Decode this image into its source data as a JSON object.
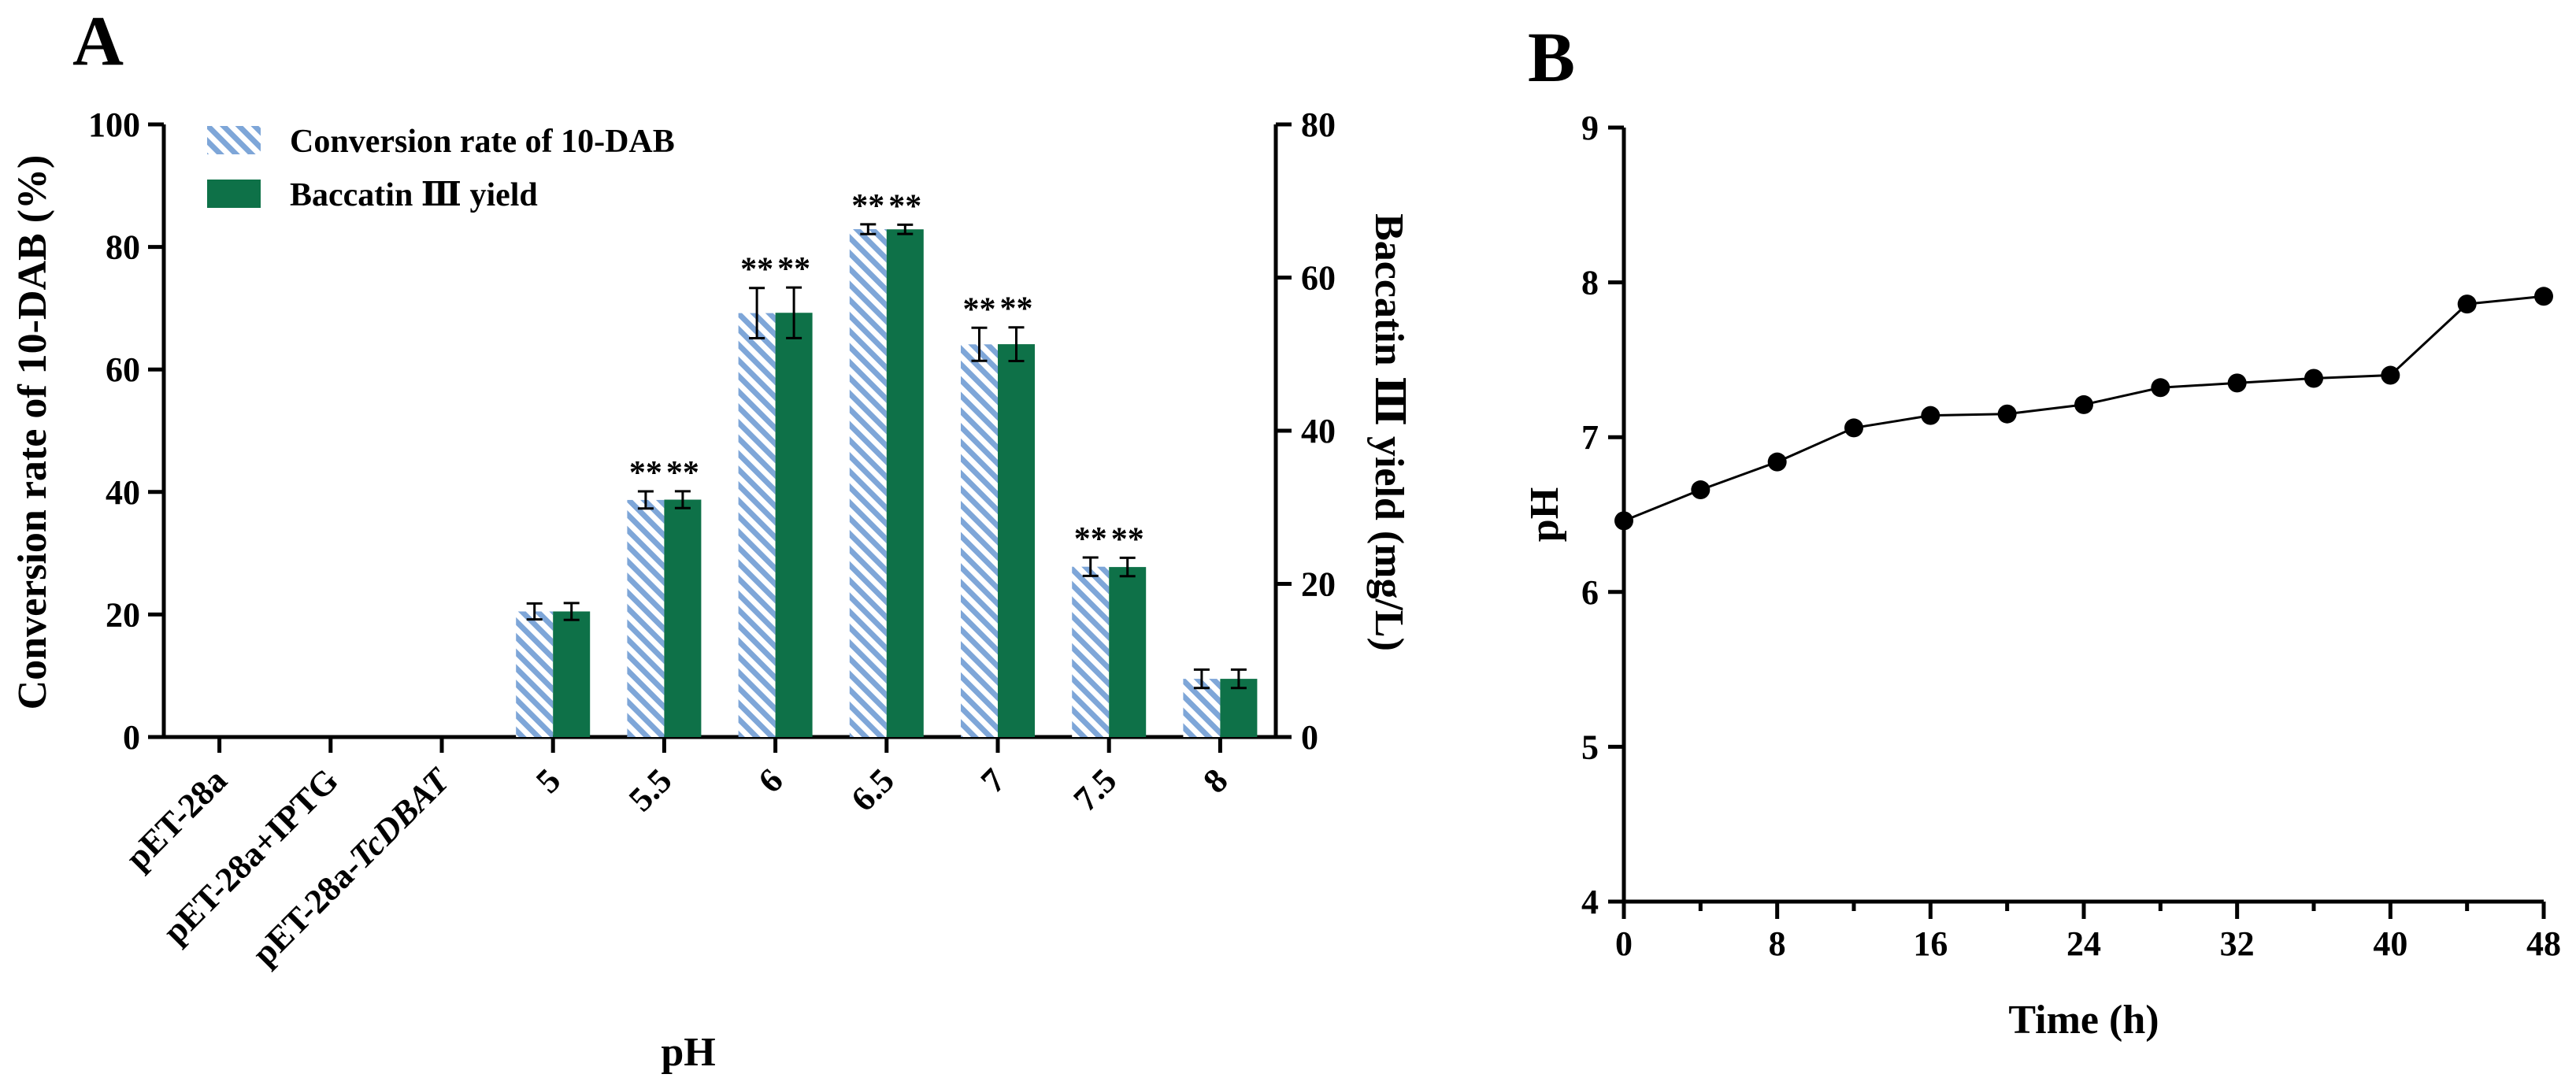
{
  "chart_data": [
    {
      "panel": "A",
      "type": "bar",
      "xlabel": "pH",
      "ylabel": "Conversion rate of 10-DAB (%)",
      "y2label": "Baccatin Ⅲ yield (mg/L)",
      "ylim": [
        0,
        100
      ],
      "y2lim": [
        0,
        80
      ],
      "yticks": [
        "0",
        "20",
        "40",
        "60",
        "80",
        "100"
      ],
      "y2ticks": [
        "0",
        "20",
        "40",
        "60",
        "80"
      ],
      "categories": [
        "pET-28a",
        "pET-28a+IPTG",
        "pET-28a-TcDBAT",
        "5",
        "5.5",
        "6",
        "6.5",
        "7",
        "7.5",
        "8"
      ],
      "legend_position": "top-left",
      "series": [
        {
          "name": "Conversion rate of 10-DAB",
          "axis": "left",
          "color": "#7ea6d8",
          "pattern": "diagonal-hatch",
          "values": [
            0,
            0,
            0,
            20.5,
            38.7,
            69.2,
            82.9,
            64.1,
            27.8,
            9.5
          ],
          "errors": [
            0,
            0,
            0,
            1.3,
            1.4,
            4.1,
            0.8,
            2.7,
            1.5,
            1.5
          ],
          "significance": [
            "",
            "",
            "",
            "",
            "**",
            "**",
            "**",
            "**",
            "**",
            ""
          ]
        },
        {
          "name": "Baccatin Ⅲ yield",
          "axis": "right",
          "color": "#0e7148",
          "pattern": "solid",
          "values": [
            0,
            0,
            0,
            16.4,
            31.0,
            55.4,
            66.3,
            51.3,
            22.2,
            7.6
          ],
          "errors": [
            0,
            0,
            0,
            1.1,
            1.1,
            3.3,
            0.6,
            2.2,
            1.2,
            1.2
          ],
          "significance": [
            "",
            "",
            "",
            "",
            "**",
            "**",
            "**",
            "**",
            "**",
            ""
          ]
        }
      ]
    },
    {
      "panel": "B",
      "type": "line",
      "xlabel": "Time (h)",
      "ylabel": "pH",
      "xlim": [
        0,
        48
      ],
      "ylim": [
        4,
        9
      ],
      "xticks": [
        "0",
        "8",
        "16",
        "24",
        "32",
        "40",
        "48"
      ],
      "yticks": [
        "4",
        "5",
        "6",
        "7",
        "8",
        "9"
      ],
      "series": [
        {
          "name": "pH",
          "color": "#000000",
          "x": [
            0,
            4,
            8,
            12,
            16,
            20,
            24,
            28,
            32,
            36,
            40,
            44,
            48
          ],
          "y": [
            6.46,
            6.66,
            6.84,
            7.06,
            7.14,
            7.15,
            7.21,
            7.32,
            7.35,
            7.38,
            7.4,
            7.86,
            7.91
          ]
        }
      ]
    }
  ]
}
